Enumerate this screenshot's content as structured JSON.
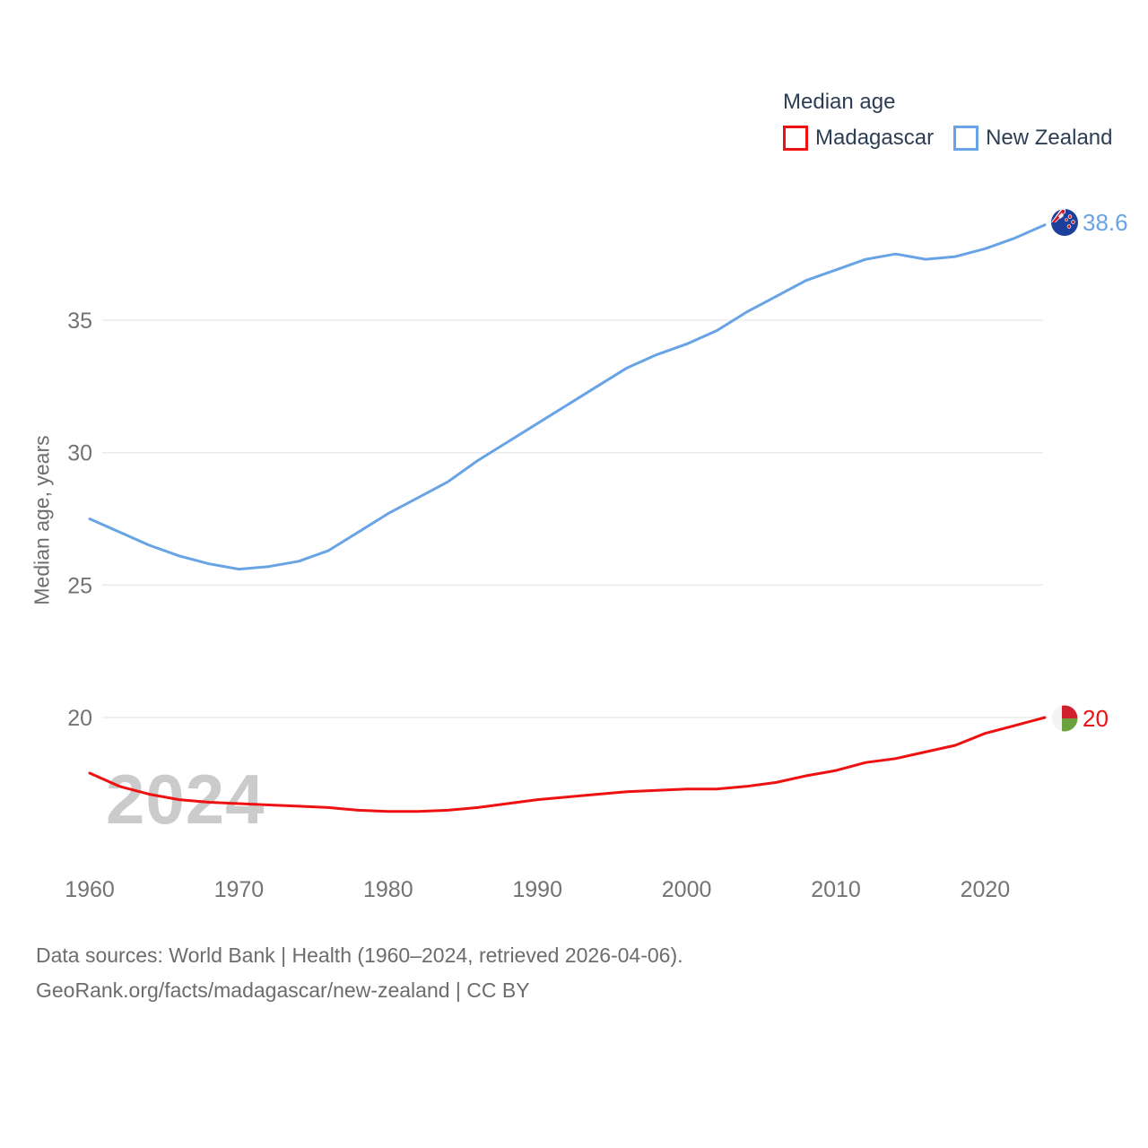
{
  "legend": {
    "title": "Median age",
    "items": [
      {
        "label": "Madagascar"
      },
      {
        "label": "New Zealand"
      }
    ]
  },
  "watermark": "2024",
  "end_labels": {
    "madagascar": "20",
    "new_zealand": "38.6"
  },
  "footer": {
    "line1": "Data sources: World Bank | Health (1960–2024, retrieved 2026-04-06).",
    "line2": "GeoRank.org/facts/madagascar/new-zealand | CC BY"
  },
  "chart_data": {
    "type": "line",
    "title": "Median age",
    "ylabel": "Median age, years",
    "xlabel": "",
    "grid": true,
    "legend_position": "top-right",
    "xlim": [
      1960,
      2024
    ],
    "ylim": [
      16,
      39.5
    ],
    "xticks": [
      1960,
      1970,
      1980,
      1990,
      2000,
      2010,
      2020
    ],
    "yticks": [
      20,
      25,
      30,
      35
    ],
    "x": [
      1960,
      1962,
      1964,
      1966,
      1968,
      1970,
      1972,
      1974,
      1976,
      1978,
      1980,
      1982,
      1984,
      1986,
      1988,
      1990,
      1992,
      1994,
      1996,
      1998,
      2000,
      2002,
      2004,
      2006,
      2008,
      2010,
      2012,
      2014,
      2016,
      2018,
      2020,
      2022,
      2024
    ],
    "series": [
      {
        "name": "Madagascar",
        "color": "#ee1111",
        "end_label": "20",
        "values": [
          17.9,
          17.4,
          17.1,
          16.9,
          16.8,
          16.75,
          16.7,
          16.65,
          16.6,
          16.5,
          16.45,
          16.45,
          16.5,
          16.6,
          16.75,
          16.9,
          17.0,
          17.1,
          17.2,
          17.25,
          17.3,
          17.3,
          17.4,
          17.55,
          17.8,
          18.0,
          18.3,
          18.45,
          18.7,
          18.95,
          19.4,
          19.7,
          20.0
        ]
      },
      {
        "name": "New Zealand",
        "color": "#68a3e5",
        "end_label": "38.6",
        "values": [
          27.5,
          27.0,
          26.5,
          26.1,
          25.8,
          25.6,
          25.7,
          25.9,
          26.3,
          27.0,
          27.7,
          28.3,
          28.9,
          29.7,
          30.4,
          31.1,
          31.8,
          32.5,
          33.2,
          33.7,
          34.1,
          34.6,
          35.3,
          35.9,
          36.5,
          36.9,
          37.3,
          37.5,
          37.3,
          37.4,
          37.7,
          38.1,
          38.6
        ]
      }
    ]
  },
  "colors": {
    "madagascar_line": "#ee1111",
    "new_zealand_line": "#68a3e5",
    "grid": "#ebebeb",
    "tick_text": "#737373",
    "legend_text": "#2c3e55",
    "watermark": "#cbcbcb",
    "footer_text": "#6c6c6c"
  }
}
